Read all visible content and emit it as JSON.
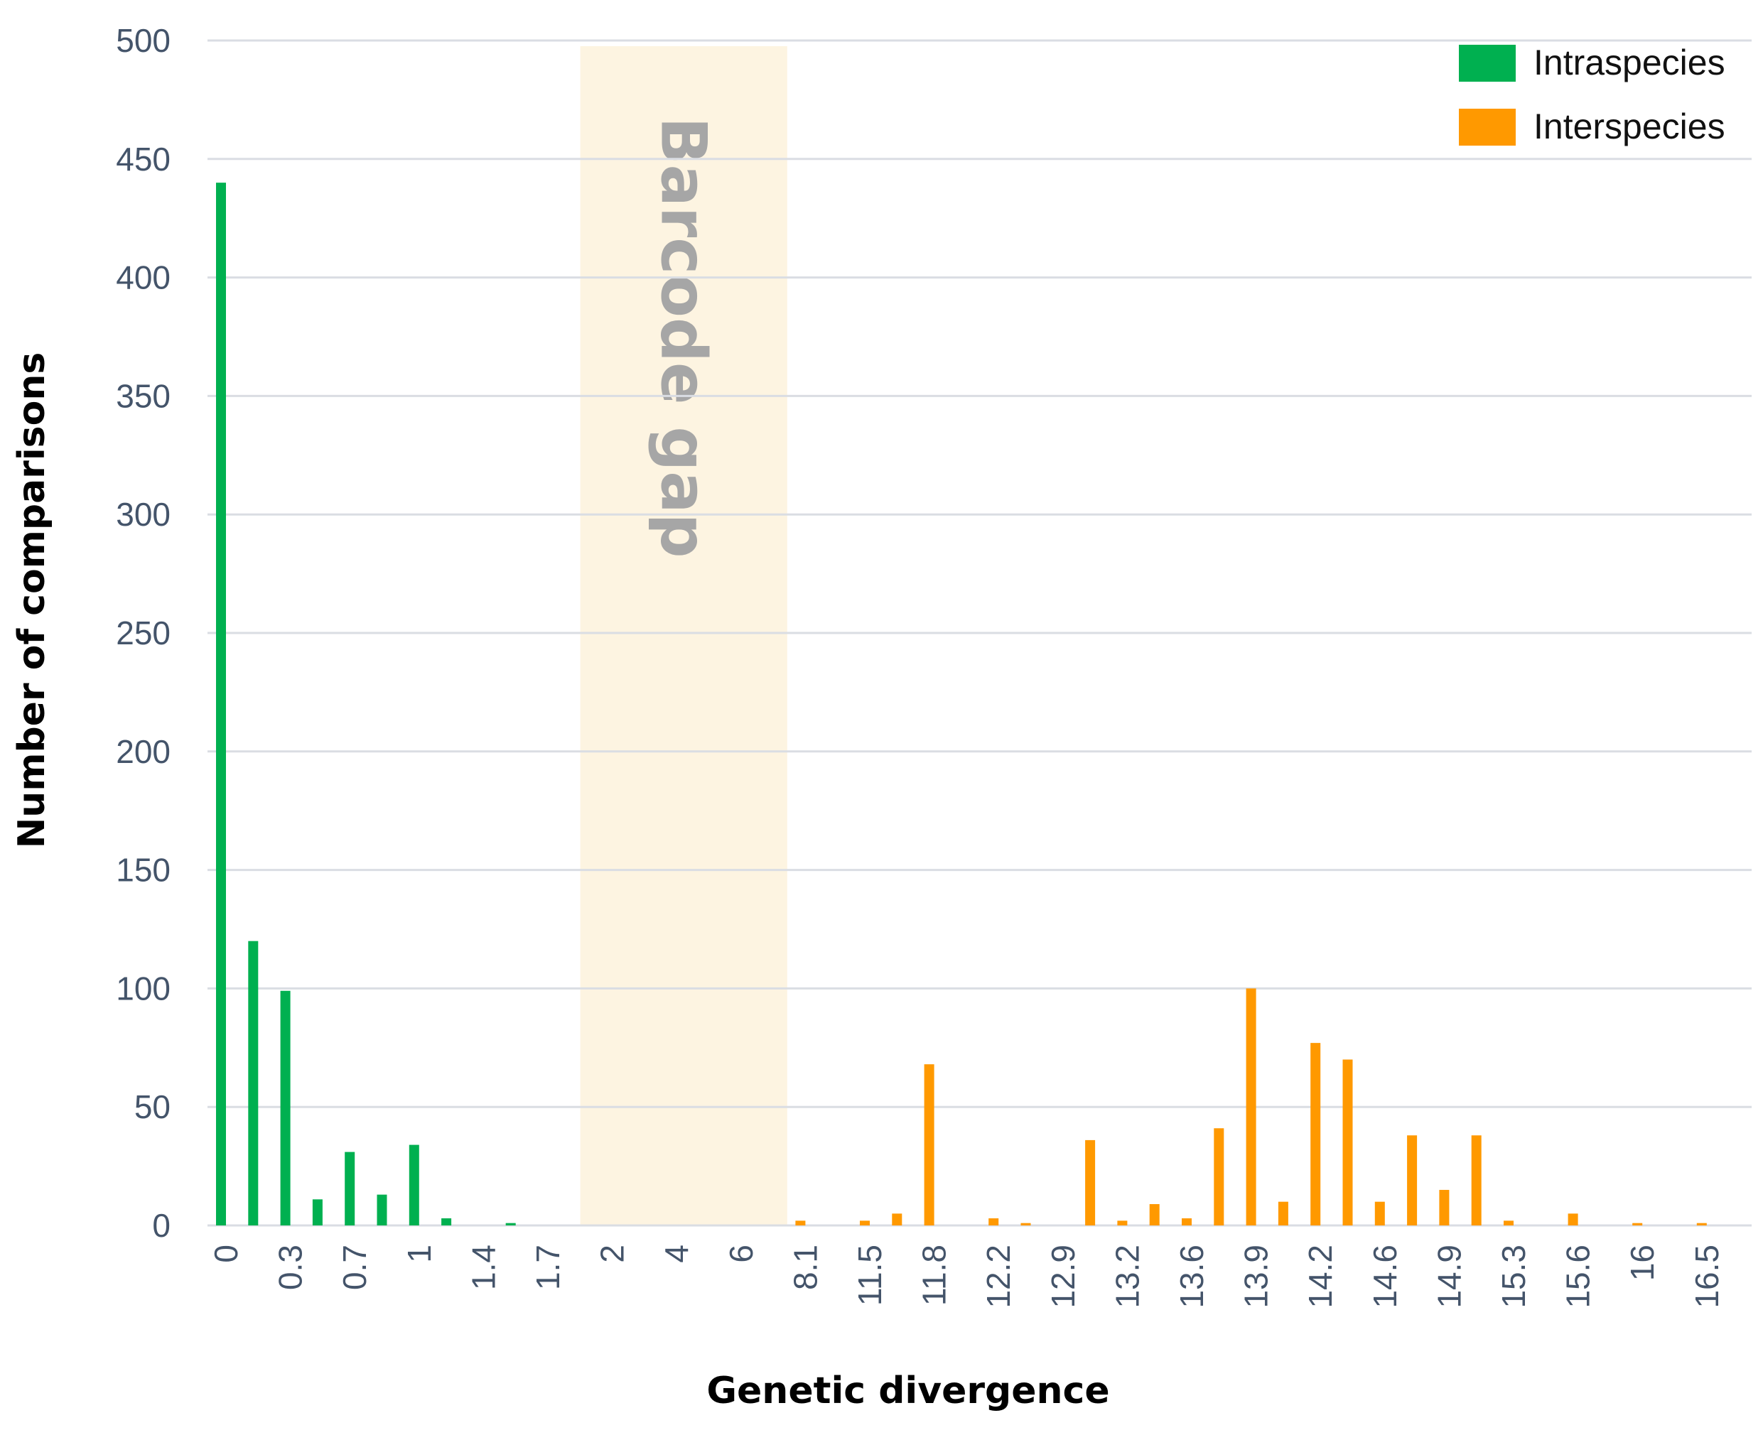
{
  "chart_data": {
    "type": "bar",
    "xlabel": "Genetic divergence",
    "ylabel": "Number of comparisons",
    "ylim": [
      0,
      500
    ],
    "y_ticks": [
      0,
      50,
      100,
      150,
      200,
      250,
      300,
      350,
      400,
      450,
      500
    ],
    "grid": true,
    "legend_position": "top-right",
    "categories": [
      "0",
      "",
      "0.3",
      "",
      "0.7",
      "",
      "1",
      "",
      "1.4",
      "",
      "1.7",
      "",
      "2",
      "",
      "4",
      "",
      "6",
      "",
      "8.1",
      "",
      "11.5",
      "",
      "11.8",
      "",
      "12.2",
      "",
      "12.9",
      "",
      "13.2",
      "",
      "13.6",
      "",
      "13.9",
      "",
      "14.2",
      "",
      "14.6",
      "",
      "14.9",
      "",
      "15.3",
      "",
      "15.6",
      "",
      "16",
      "",
      "16.5"
    ],
    "series": [
      {
        "name": "Intraspecies",
        "color": "#00b050",
        "values": [
          440,
          120,
          99,
          11,
          31,
          13,
          34,
          3,
          0,
          1,
          0,
          0,
          0,
          0,
          0,
          0,
          0,
          0,
          0,
          0,
          0,
          0,
          0,
          0,
          0,
          0,
          0,
          0,
          0,
          0,
          0,
          0,
          0,
          0,
          0,
          0,
          0,
          0,
          0,
          0,
          0,
          0,
          0,
          0,
          0,
          0,
          0
        ]
      },
      {
        "name": "Interspecies",
        "color": "#ff9900",
        "values": [
          0,
          0,
          0,
          0,
          0,
          0,
          0,
          0,
          0,
          0,
          0,
          0,
          0,
          0,
          0,
          0,
          0,
          0,
          2,
          0,
          2,
          5,
          68,
          0,
          3,
          1,
          0,
          36,
          2,
          9,
          3,
          41,
          100,
          10,
          77,
          70,
          10,
          38,
          15,
          38,
          2,
          0,
          5,
          0,
          1,
          0,
          1
        ]
      }
    ],
    "annotations": [
      {
        "text": "Barcode gap",
        "from_category": "2",
        "to_category": "6",
        "color": "#fdf4e1"
      }
    ]
  }
}
